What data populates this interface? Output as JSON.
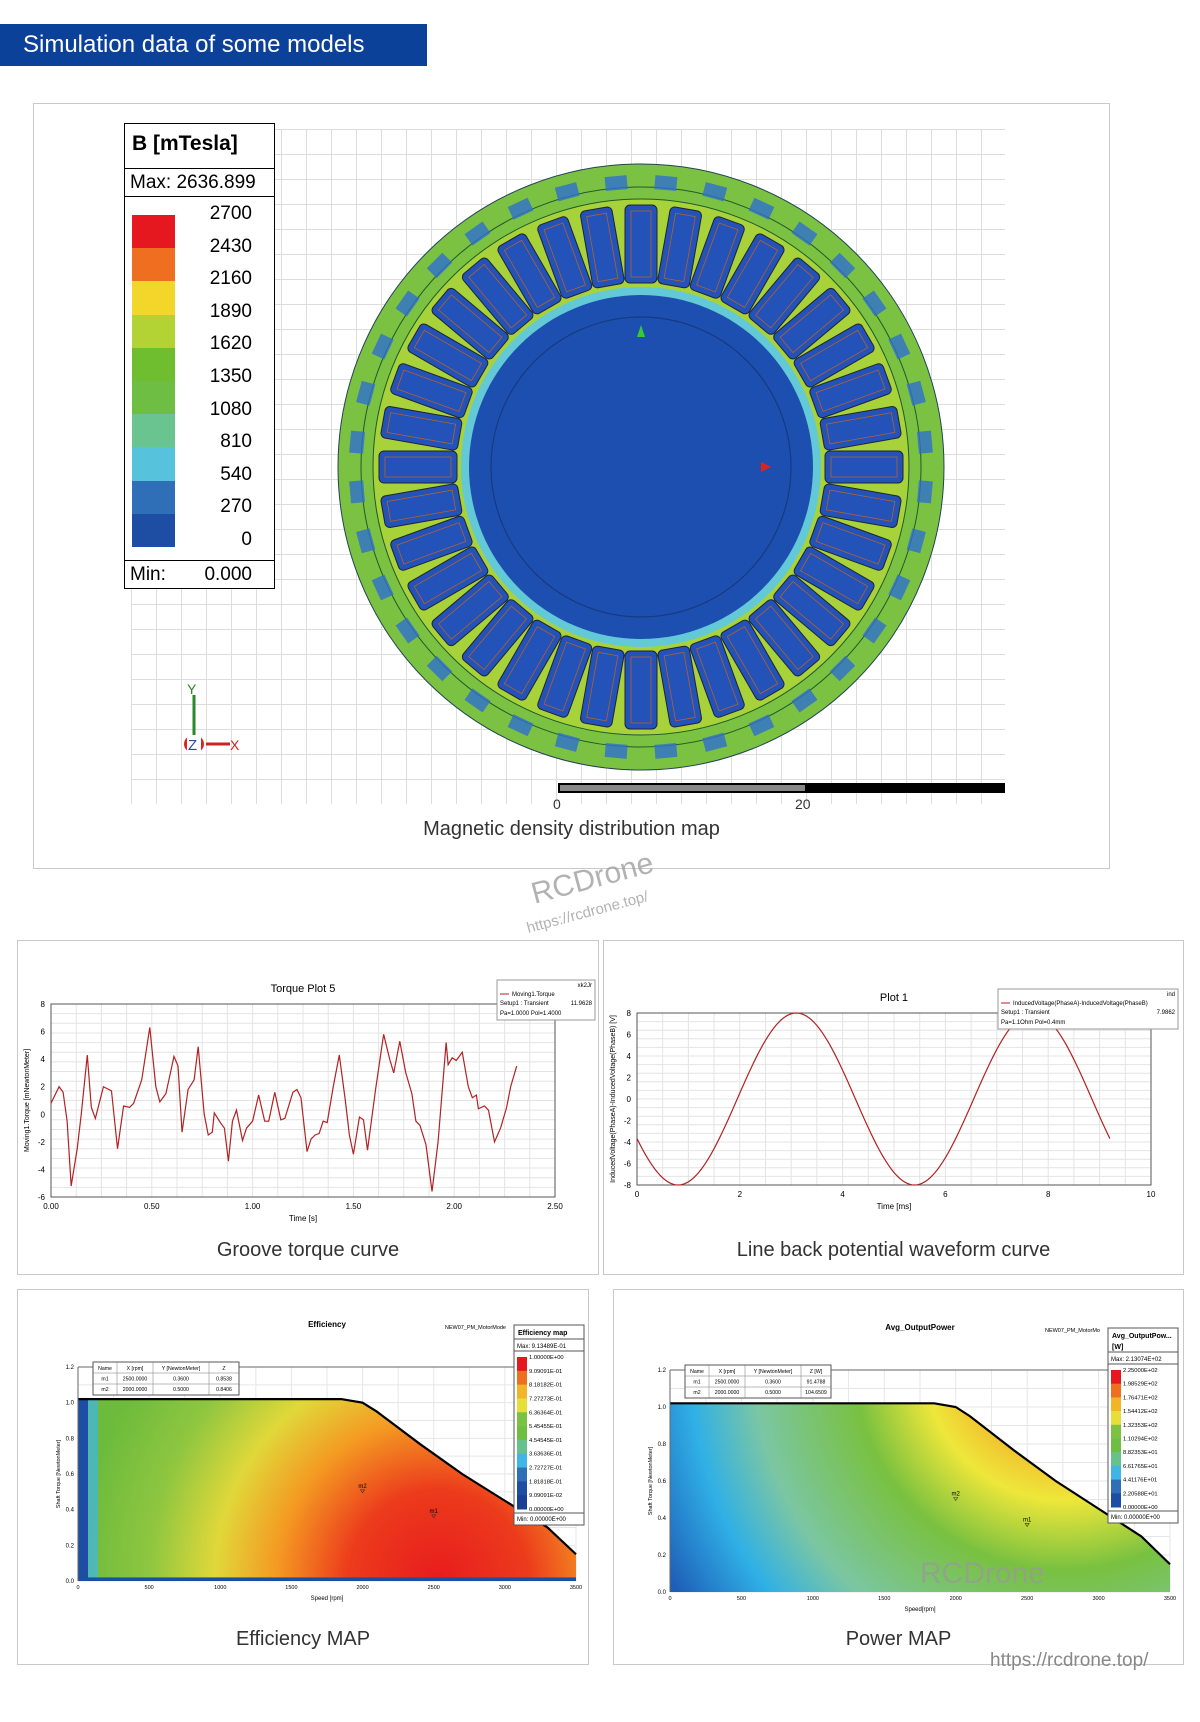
{
  "banner": {
    "title": "Simulation data of some models"
  },
  "magnetic": {
    "legend_title": "B [mTesla]",
    "max_label": "Max: 2636.899",
    "min_label": "Min:",
    "min_value": "0.000",
    "levels": [
      "2700",
      "2430",
      "2160",
      "1890",
      "1620",
      "1350",
      "1080",
      "810",
      "540",
      "270",
      "0"
    ],
    "colors": [
      "#e5171f",
      "#ee6f1f",
      "#f2d72a",
      "#b3d234",
      "#6fbe2f",
      "#6fbe44",
      "#6ac48f",
      "#56c2dc",
      "#2f6fb8",
      "#1e4ea3"
    ],
    "axis": {
      "y": "Y",
      "z": "Z",
      "x": "X"
    },
    "scale": {
      "start": "0",
      "mid": "20"
    },
    "caption": "Magnetic density distribution map",
    "watermark": "RCDrone",
    "watermark_url": "https://rcdrone.top/"
  },
  "chart_data": [
    {
      "type": "line",
      "title": "Torque Plot 5",
      "xlabel": "Time [s]",
      "ylabel": "Moving1.Torque [mNewtonMeter]",
      "xlim": [
        0,
        2.5
      ],
      "ylim": [
        -6,
        8
      ],
      "xticks": [
        "0.00",
        "0.50",
        "1.00",
        "1.50",
        "2.00",
        "2.50"
      ],
      "yticks": [
        "8",
        "6",
        "4",
        "2",
        "0",
        "-2",
        "-4",
        "-6"
      ],
      "legend": {
        "tag": "xk2Jr",
        "name": "Moving1.Torque",
        "setup": "Setup1 : Transient",
        "param": "Pa=1.0000 Pol=1.4000",
        "value": "11.9628"
      },
      "caption": "Groove torque curve",
      "color": "#b22222",
      "x": [
        0,
        0.04,
        0.06,
        0.08,
        0.1,
        0.13,
        0.15,
        0.18,
        0.2,
        0.22,
        0.26,
        0.3,
        0.33,
        0.36,
        0.39,
        0.41,
        0.45,
        0.49,
        0.52,
        0.54,
        0.57,
        0.61,
        0.63,
        0.65,
        0.68,
        0.71,
        0.73,
        0.76,
        0.78,
        0.8,
        0.81,
        0.84,
        0.86,
        0.88,
        0.9,
        0.92,
        0.95,
        0.97,
        1.0,
        1.03,
        1.06,
        1.08,
        1.11,
        1.14,
        1.16,
        1.2,
        1.22,
        1.24,
        1.27,
        1.29,
        1.31,
        1.33,
        1.35,
        1.37,
        1.4,
        1.43,
        1.46,
        1.48,
        1.5,
        1.53,
        1.55,
        1.57,
        1.61,
        1.65,
        1.68,
        1.7,
        1.73,
        1.76,
        1.79,
        1.81,
        1.83,
        1.86,
        1.89,
        1.92,
        1.96,
        1.97,
        1.99,
        2.01,
        2.04,
        2.07,
        2.09,
        2.11,
        2.12,
        2.15,
        2.17,
        2.2,
        2.23,
        2.26,
        2.28,
        2.31
      ],
      "y": [
        0.8,
        2.0,
        1.6,
        -0.5,
        -5.2,
        -2.5,
        0,
        4.3,
        0.5,
        -0.3,
        2.0,
        1.7,
        -2.5,
        0.6,
        0.5,
        0.8,
        2.5,
        6.3,
        2.0,
        0.9,
        1.5,
        4.2,
        3.5,
        -1.3,
        1.8,
        2.5,
        4.9,
        0,
        -1.5,
        -1.3,
        0.1,
        -0.6,
        -1.0,
        -3.4,
        -0.5,
        0.3,
        -1.9,
        -1.0,
        -0.5,
        1.4,
        -0.5,
        -0.5,
        1.6,
        -0.4,
        -0.3,
        1.6,
        1.8,
        1.2,
        -2.7,
        -1.8,
        -1.5,
        -1.4,
        -0.5,
        -0.6,
        2,
        4.3,
        1.0,
        -1.5,
        -2.9,
        -0.2,
        -0.4,
        -2.6,
        1.8,
        5.8,
        4.0,
        3.0,
        5.3,
        3.0,
        1.5,
        -0.5,
        -0.8,
        -2.2,
        -5.6,
        -2.0,
        5.2,
        3.6,
        4.1,
        3.9,
        4.5,
        2.0,
        1.2,
        1.4,
        0.4,
        0.6,
        0.3,
        -2.0,
        -1.0,
        0.5,
        2,
        3.5
      ]
    },
    {
      "type": "line",
      "title": "Plot 1",
      "xlabel": "Time [ms]",
      "ylabel": "InducedVoltage(PhaseA)-InducedVoltage(PhaseB) [V]",
      "xlim": [
        0,
        10
      ],
      "ylim": [
        -8,
        8
      ],
      "xticks": [
        "0",
        "2",
        "4",
        "6",
        "8",
        "10"
      ],
      "yticks": [
        "8",
        "6",
        "4",
        "2",
        "0",
        "-2",
        "-4",
        "-6",
        "-8"
      ],
      "legend": {
        "tag": "ind",
        "name": "InducedVoltage(PhaseA)-InducedVoltage(PhaseB)",
        "setup": "Setup1 : Transient",
        "param": "Pa=1.1Ohm Pol=0.4mm",
        "value": "7.9862"
      },
      "caption": "Line back potential waveform curve",
      "color": "#b22222",
      "waveform": {
        "shape": "sine",
        "amplitude": 8,
        "period": 4.6,
        "min_at": 0.8,
        "t_end": 9.2
      }
    },
    {
      "type": "heatmap",
      "title": "Efficiency",
      "subtitle": "NEW07_PM_MotorMode",
      "xlabel": "Speed [rpm]",
      "ylabel": "Shaft Torque [NewtonMeter]",
      "xlim": [
        0,
        3500
      ],
      "ylim": [
        0,
        1.2
      ],
      "xticks": [
        "0",
        "500",
        "1000",
        "1500",
        "2000",
        "2500",
        "3000",
        "3500"
      ],
      "yticks": [
        "1.2",
        "1.0",
        "0.8",
        "0.6",
        "0.4",
        "0.2",
        "0.0"
      ],
      "legend_title": "Efficiency map",
      "max_label": "Max: 9.13489E-01",
      "min_label": "Min: 0.00000E+00",
      "levels": [
        "1.00000E+00",
        "9.09091E-01",
        "8.18182E-01",
        "7.27273E-01",
        "6.36364E-01",
        "5.45455E-01",
        "4.54545E-01",
        "3.63636E-01",
        "2.72727E-01",
        "1.81818E-01",
        "9.09091E-02",
        "0.00000E+00"
      ],
      "markers_table": {
        "headers": [
          "Name",
          "X [rpm]",
          "Y [NewtonMeter]",
          "Z"
        ],
        "rows": [
          [
            "m1",
            "2500.0000",
            "0.3600",
            "0.8538"
          ],
          [
            "m2",
            "2000.0000",
            "0.5000",
            "0.8406"
          ]
        ]
      },
      "markers": [
        {
          "name": "m1",
          "x": 2500,
          "y": 0.36
        },
        {
          "name": "m2",
          "x": 2000,
          "y": 0.5
        }
      ],
      "boundary": [
        [
          0,
          1.02
        ],
        [
          1850,
          1.02
        ],
        [
          2000,
          1.0
        ],
        [
          2100,
          0.95
        ],
        [
          2400,
          0.77
        ],
        [
          2700,
          0.6
        ],
        [
          3000,
          0.45
        ],
        [
          3300,
          0.3
        ],
        [
          3500,
          0.15
        ]
      ],
      "caption": "Efficiency MAP"
    },
    {
      "type": "heatmap",
      "title": "Avg_OutputPower",
      "subtitle": "NEW07_PM_MotorMo",
      "xlabel": "Speed[rpm]",
      "ylabel": "Shaft Torque [NewtonMeter]",
      "xlim": [
        0,
        3500
      ],
      "ylim": [
        0,
        1.2
      ],
      "xticks": [
        "0",
        "500",
        "1000",
        "1500",
        "2000",
        "2500",
        "3000",
        "3500"
      ],
      "yticks": [
        "1.2",
        "1.0",
        "0.8",
        "0.6",
        "0.4",
        "0.2",
        "0.0"
      ],
      "legend_title": "Avg_OutputPow...",
      "legend_unit": "[W]",
      "max_label": "Max: 2.13074E+02",
      "min_label": "Min: 0.00000E+00",
      "levels": [
        "2.25000E+02",
        "1.98529E+02",
        "1.76471E+02",
        "1.54412E+02",
        "1.32353E+02",
        "1.10294E+02",
        "8.82353E+01",
        "6.61765E+01",
        "4.41176E+01",
        "2.20588E+01",
        "0.00000E+00"
      ],
      "markers_table": {
        "headers": [
          "Name",
          "X [rpm]",
          "Y [NewtonMeter]",
          "Z [W]"
        ],
        "rows": [
          [
            "m1",
            "2500.0000",
            "0.3600",
            "91.4788"
          ],
          [
            "m2",
            "2000.0000",
            "0.5000",
            "104.6509"
          ]
        ]
      },
      "markers": [
        {
          "name": "m1",
          "x": 2500,
          "y": 0.36
        },
        {
          "name": "m2",
          "x": 2000,
          "y": 0.5
        }
      ],
      "boundary": [
        [
          0,
          1.02
        ],
        [
          1850,
          1.02
        ],
        [
          2000,
          1.0
        ],
        [
          2100,
          0.95
        ],
        [
          2400,
          0.77
        ],
        [
          2700,
          0.6
        ],
        [
          3000,
          0.45
        ],
        [
          3300,
          0.3
        ],
        [
          3500,
          0.15
        ]
      ],
      "caption": "Power MAP",
      "watermark": "RCDrone"
    }
  ],
  "footer": {
    "url": "https://rcdrone.top/"
  }
}
